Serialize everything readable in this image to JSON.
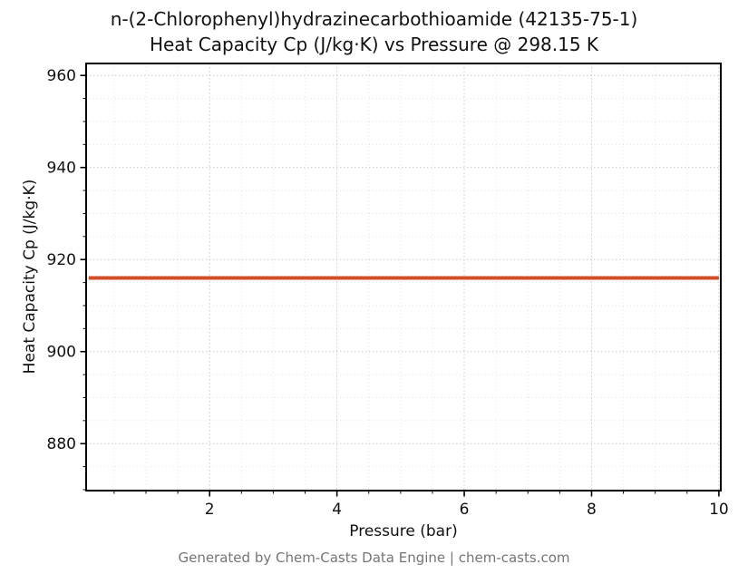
{
  "chart_data": {
    "type": "line",
    "title_line1": "n-(2-Chlorophenyl)hydrazinecarbothioamide (42135-75-1)",
    "title_line2": "Heat Capacity Cp (J/kg·K) vs Pressure @ 298.15 K",
    "xlabel": "Pressure (bar)",
    "ylabel": "Heat Capacity Cp (J/kg·K)",
    "xlim": [
      0.06,
      10.03
    ],
    "ylim": [
      869.8,
      962.6
    ],
    "xticks": [
      2,
      4,
      6,
      8,
      10
    ],
    "yticks": [
      880,
      900,
      920,
      940,
      960
    ],
    "x_minor_step": 0.5,
    "y_minor_step": 5,
    "grid": true,
    "legend": "none",
    "series": [
      {
        "name": "Heat Capacity Cp",
        "color": "#d14f28",
        "width": 4,
        "x": [
          0.1,
          10.0
        ],
        "y": [
          916,
          916
        ]
      }
    ]
  },
  "footer": {
    "text": "Generated by Chem-Casts Data Engine | chem-casts.com"
  }
}
